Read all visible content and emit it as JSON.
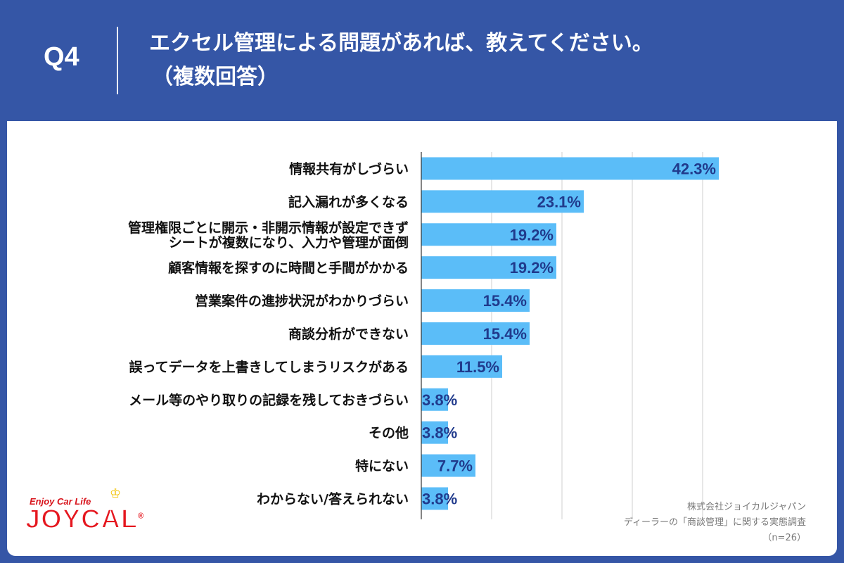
{
  "header": {
    "question": "Q4",
    "title_line1": "エクセル管理による問題があれば、教えてください。",
    "title_line2": "（複数回答）"
  },
  "chart_data": {
    "type": "bar",
    "orientation": "horizontal",
    "unit": "%",
    "xlim": [
      0,
      45
    ],
    "grid": true,
    "categories": [
      [
        "情報共有がしづらい"
      ],
      [
        "記入漏れが多くなる"
      ],
      [
        "管理権限ごとに開示・非開示情報が設定できず",
        "シートが複数になり、入力や管理が面倒"
      ],
      [
        "顧客情報を探すのに時間と手間がかかる"
      ],
      [
        "営業案件の進捗状況がわかりづらい"
      ],
      [
        "商談分析ができない"
      ],
      [
        "誤ってデータを上書きしてしまうリスクがある"
      ],
      [
        "メール等のやり取りの記録を残しておきづらい"
      ],
      [
        "その他"
      ],
      [
        "特にない"
      ],
      [
        "わからない/答えられない"
      ]
    ],
    "values": [
      42.3,
      23.1,
      19.2,
      19.2,
      15.4,
      15.4,
      11.5,
      3.8,
      3.8,
      7.7,
      3.8
    ],
    "value_labels": [
      "42.3%",
      "23.1%",
      "19.2%",
      "19.2%",
      "15.4%",
      "15.4%",
      "11.5%",
      "3.8%",
      "3.8%",
      "7.7%",
      "3.8%"
    ],
    "bar_color": "#5bbdf8",
    "label_color": "#203a8c"
  },
  "logo": {
    "tagline": "Enjoy Car Life",
    "wordmark": "JOYCAL",
    "mark": "®"
  },
  "source": {
    "company": "株式会社ジョイカルジャパン",
    "survey": "ディーラーの「商談管理」に関する実態調査",
    "sample": "（n=26）"
  }
}
